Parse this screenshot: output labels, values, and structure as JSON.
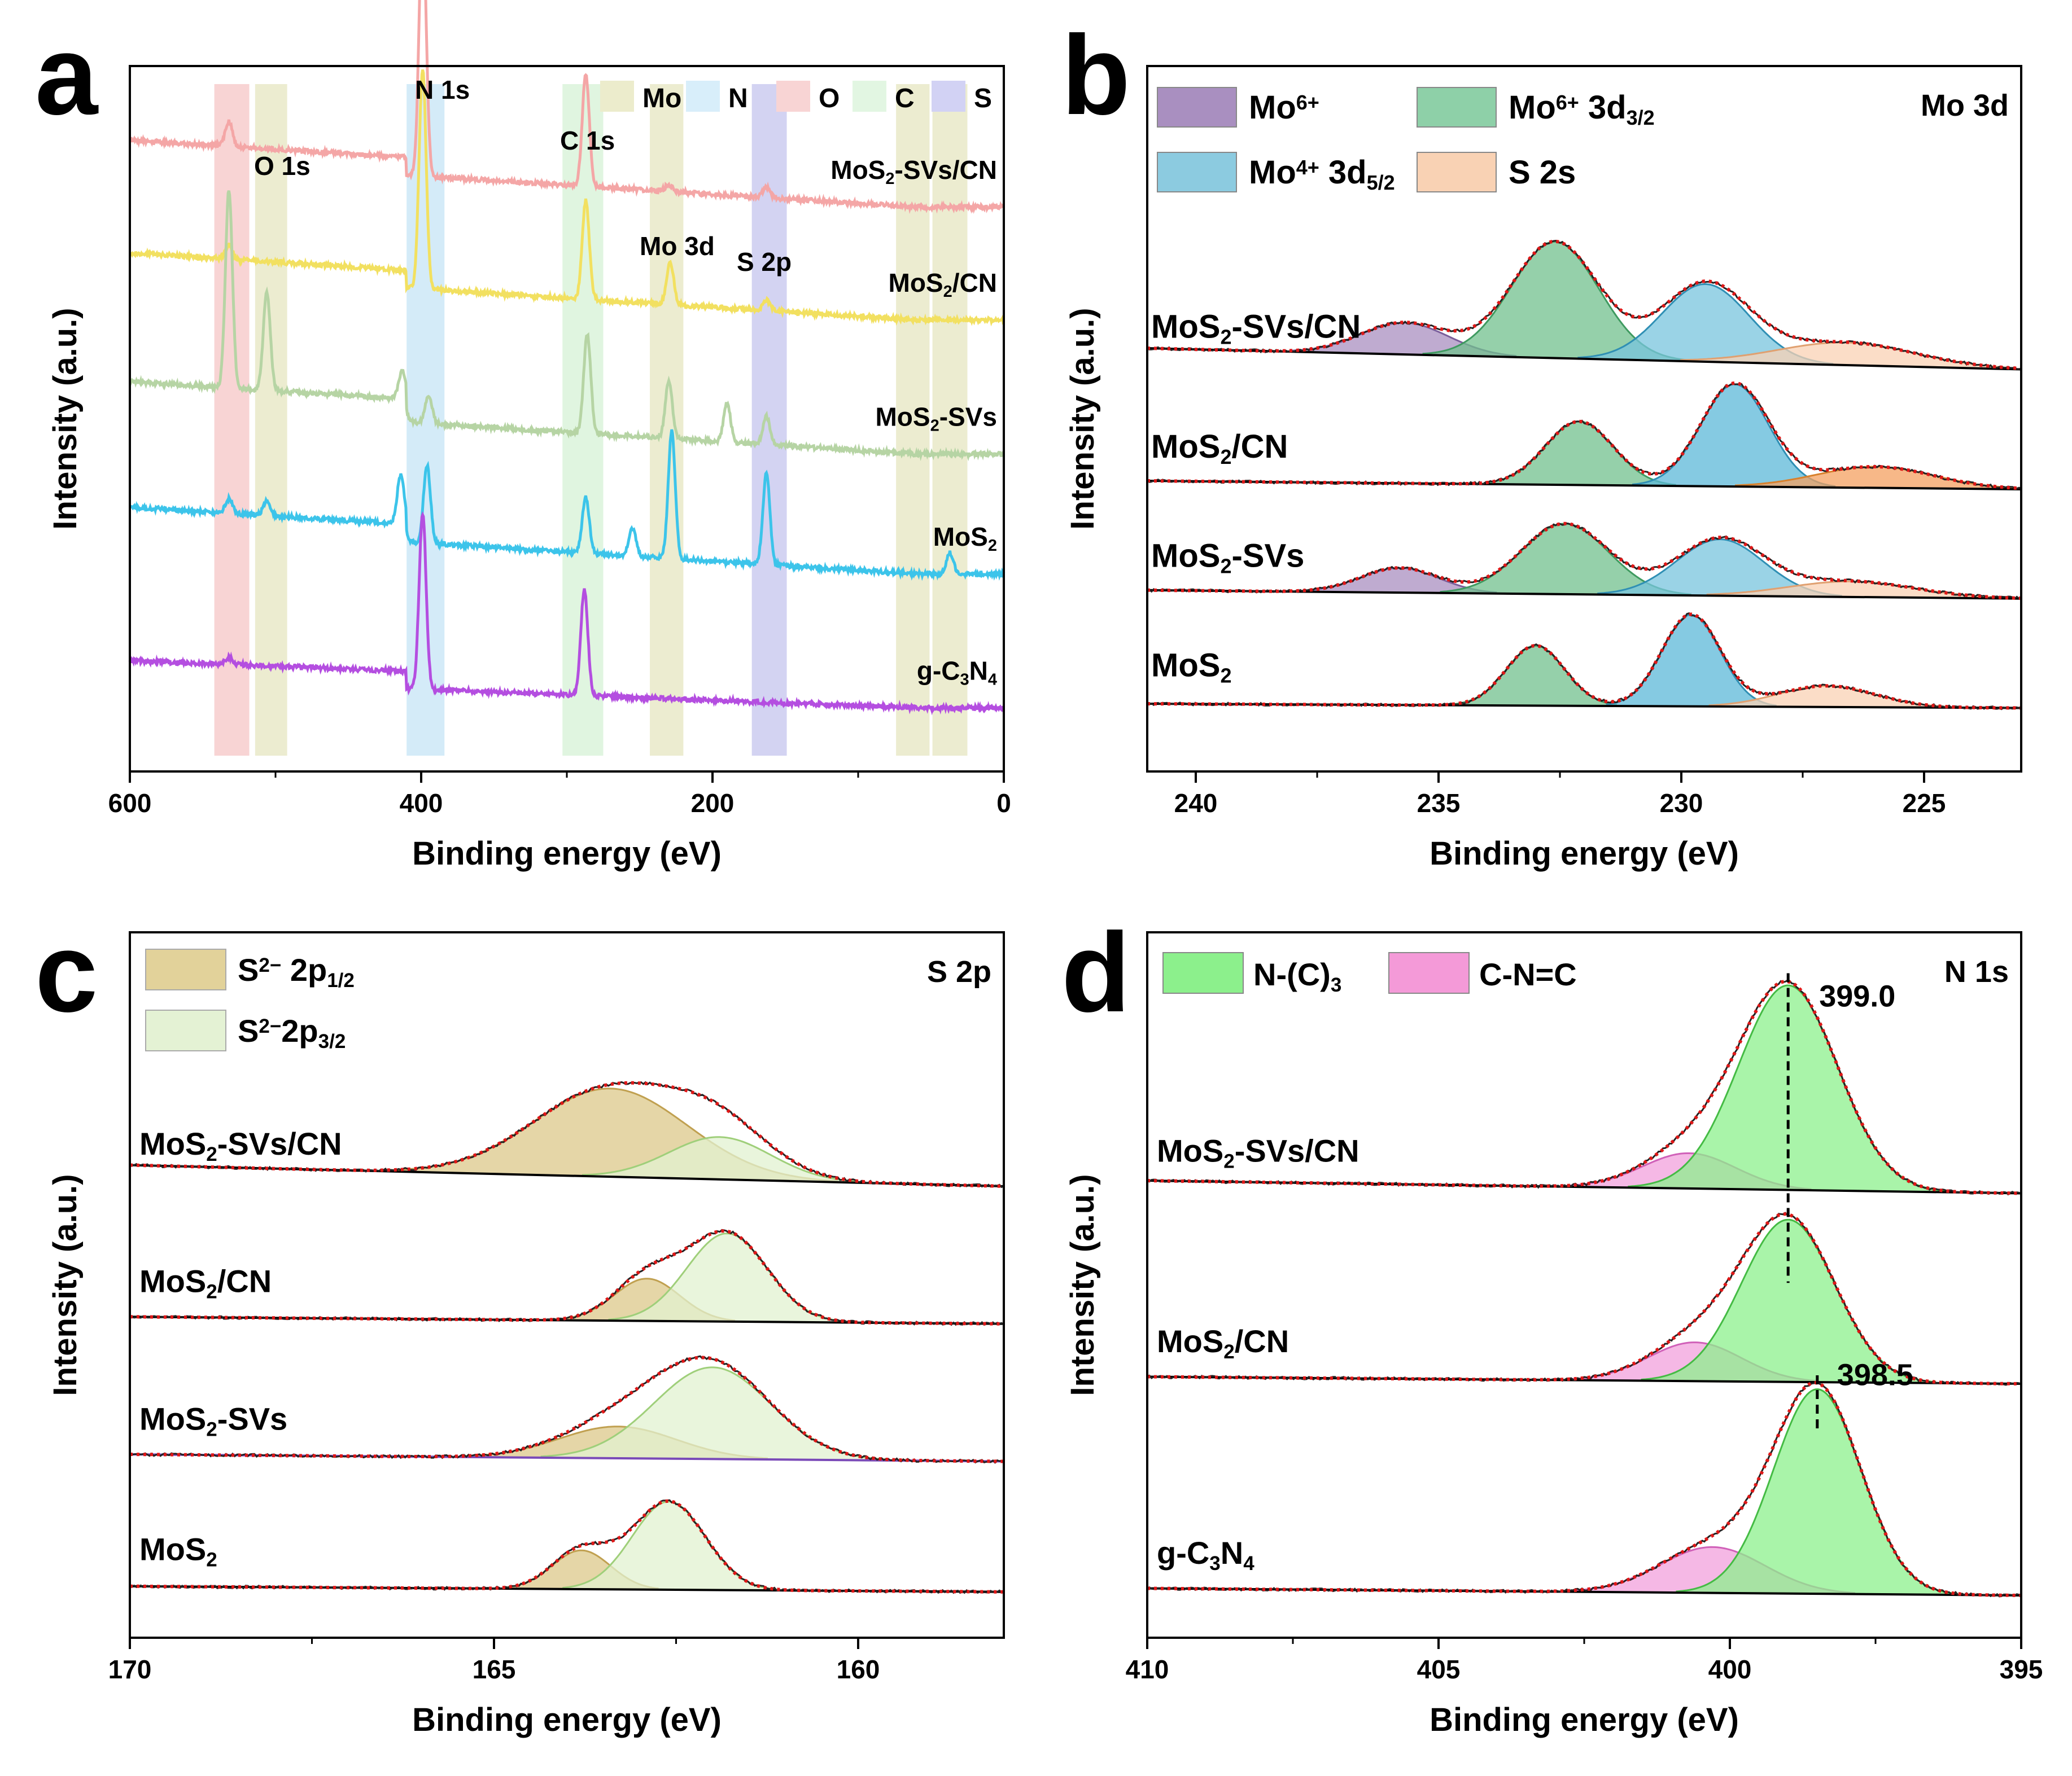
{
  "figure": {
    "panels": [
      "a",
      "b",
      "c",
      "d"
    ]
  },
  "chart_data": [
    {
      "panel": "a",
      "type": "line",
      "subtype": "XPS survey spectra",
      "xlabel": "Binding energy (eV)",
      "ylabel": "Intensity (a.u.)",
      "xlim": [
        600,
        0
      ],
      "x_reversed": true,
      "xticks": [
        "600",
        "400",
        "200",
        "0"
      ],
      "xtick_values": [
        600,
        400,
        200,
        0
      ],
      "region_labels": [
        {
          "label": "O 1s",
          "x": 520
        },
        {
          "label": "N 1s",
          "x": 390
        },
        {
          "label": "C 1s",
          "x": 290
        },
        {
          "label": "Mo 3d",
          "x": 227
        },
        {
          "label": "S 2p",
          "x": 163
        }
      ],
      "highlight_bands": [
        {
          "element": "O",
          "from": 542,
          "to": 518,
          "color": "#f6c6c6"
        },
        {
          "element": "Mo",
          "from": 514,
          "to": 492,
          "color": "#e6e6c0"
        },
        {
          "element": "N",
          "from": 410,
          "to": 384,
          "color": "#c6e4f6"
        },
        {
          "element": "C",
          "from": 303,
          "to": 275,
          "color": "#d6f2d6"
        },
        {
          "element": "Mo",
          "from": 243,
          "to": 220,
          "color": "#e6e6c0"
        },
        {
          "element": "S",
          "from": 173,
          "to": 149,
          "color": "#c4c4ee"
        },
        {
          "element": "Mo",
          "from": 74,
          "to": 51,
          "color": "#e6e6c0"
        },
        {
          "element": "Mo",
          "from": 49,
          "to": 25,
          "color": "#e6e6c0"
        }
      ],
      "legend": [
        {
          "label": "Mo",
          "color": "#ececcc"
        },
        {
          "label": "N",
          "color": "#d8eefa"
        },
        {
          "label": "O",
          "color": "#f8d4d4"
        },
        {
          "label": "C",
          "color": "#e2f6e2"
        },
        {
          "label": "S",
          "color": "#d2d2f4"
        }
      ],
      "series": [
        {
          "name": "MoS2-SVs/CN",
          "label_main": "MoS",
          "label_sub": "2",
          "label_rest": "-SVs/CN",
          "color": "#f4a6a6",
          "offset": 0.8,
          "peaks": [
            {
              "x": 532,
              "h": 0.035
            },
            {
              "x": 399,
              "h": 0.37
            },
            {
              "x": 287,
              "h": 0.16
            },
            {
              "x": 230,
              "h": 0.01
            },
            {
              "x": 163,
              "h": 0.015
            }
          ]
        },
        {
          "name": "MoS2/CN",
          "label_main": "MoS",
          "label_sub": "2",
          "label_rest": "/CN",
          "color": "#f2e060",
          "offset": 0.64,
          "peaks": [
            {
              "x": 532,
              "h": 0.02
            },
            {
              "x": 399,
              "h": 0.31
            },
            {
              "x": 287,
              "h": 0.14
            },
            {
              "x": 229,
              "h": 0.06
            },
            {
              "x": 163,
              "h": 0.015
            }
          ]
        },
        {
          "name": "MoS2-SVs",
          "label_main": "MoS",
          "label_sub": "2",
          "label_rest": "-SVs",
          "color": "#b6d4a4",
          "offset": 0.45,
          "peaks": [
            {
              "x": 532,
              "h": 0.28
            },
            {
              "x": 506,
              "h": 0.14
            },
            {
              "x": 413,
              "h": 0.04
            },
            {
              "x": 395,
              "h": 0.04
            },
            {
              "x": 286,
              "h": 0.14
            },
            {
              "x": 230,
              "h": 0.08
            },
            {
              "x": 190,
              "h": 0.055
            },
            {
              "x": 163,
              "h": 0.04
            }
          ]
        },
        {
          "name": "MoS2",
          "label_main": "MoS",
          "label_sub": "2",
          "label_rest": "",
          "color": "#3cc4ea",
          "offset": 0.28,
          "peaks": [
            {
              "x": 532,
              "h": 0.02
            },
            {
              "x": 506,
              "h": 0.02
            },
            {
              "x": 414,
              "h": 0.07
            },
            {
              "x": 396,
              "h": 0.11
            },
            {
              "x": 287,
              "h": 0.08
            },
            {
              "x": 255,
              "h": 0.04
            },
            {
              "x": 228,
              "h": 0.18
            },
            {
              "x": 163,
              "h": 0.13
            },
            {
              "x": 37,
              "h": 0.03
            }
          ]
        },
        {
          "name": "g-C3N4",
          "label_main": "g-C",
          "label_sub": "3",
          "label_rest": "N",
          "label_sub2": "4",
          "color": "#b44ee0",
          "offset": 0.09,
          "peaks": [
            {
              "x": 532,
              "h": 0.01
            },
            {
              "x": 399,
              "h": 0.25
            },
            {
              "x": 288,
              "h": 0.15
            }
          ]
        }
      ]
    },
    {
      "panel": "b",
      "type": "line",
      "subtype": "XPS high-resolution with fitted peaks",
      "title": "Mo 3d",
      "xlabel": "Binding energy (eV)",
      "ylabel": "Intensity (a.u.)",
      "xlim": [
        241,
        223
      ],
      "x_reversed": true,
      "xticks": [
        "240",
        "235",
        "230",
        "225"
      ],
      "xtick_values": [
        240,
        235,
        230,
        225
      ],
      "legend": [
        {
          "label": "Mo",
          "sup": "6+",
          "sub": "",
          "color": "#a98fc0"
        },
        {
          "label": "Mo",
          "sup": "6+",
          "sub": "3/2",
          "suffix": " 3d",
          "color": "#8ed0a8"
        },
        {
          "label": "Mo",
          "sup": "4+",
          "sub": "5/2",
          "suffix": " 3d",
          "color": "#8ccbe0"
        },
        {
          "label": "S 2s",
          "sup": "",
          "sub": "",
          "color": "#f9d2b4"
        }
      ],
      "series": [
        {
          "name": "MoS2-SVs/CN",
          "label_main": "MoS",
          "label_sub": "2",
          "label_rest": "-SVs/CN",
          "offset": 0.57,
          "bg": [
            0.03,
            0.0
          ],
          "components": [
            {
              "name": "Mo6+",
              "center": 235.7,
              "height": 0.045,
              "width": 0.9,
              "color": "#a98fc0",
              "line": "#7a5e9a"
            },
            {
              "name": "Mo6+ 3d3/2",
              "center": 232.6,
              "height": 0.165,
              "width": 0.9,
              "color": "#72c08e",
              "line": "#3f9a60"
            },
            {
              "name": "Mo4+ 3d5/2",
              "center": 229.5,
              "height": 0.11,
              "width": 0.9,
              "color": "#78c4de",
              "line": "#2f8fb4"
            },
            {
              "name": "S 2s",
              "center": 226.6,
              "height": 0.032,
              "width": 1.4,
              "color": "#f9d2b4",
              "line": "#e0a070"
            }
          ]
        },
        {
          "name": "MoS2/CN",
          "label_main": "MoS",
          "label_sub": "2",
          "label_rest": "/CN",
          "offset": 0.4,
          "bg": [
            0.012,
            0.0
          ],
          "components": [
            {
              "name": "Mo6+ 3d3/2",
              "center": 232.1,
              "height": 0.09,
              "width": 0.7,
              "color": "#72c08e",
              "line": "#3f9a60"
            },
            {
              "name": "Mo4+ 3d5/2",
              "center": 228.9,
              "height": 0.145,
              "width": 0.7,
              "color": "#5cb8d8",
              "line": "#2f8fb4"
            },
            {
              "name": "S 2s",
              "center": 226.0,
              "height": 0.03,
              "width": 1.2,
              "color": "#f4a060",
              "line": "#d8802c"
            }
          ]
        },
        {
          "name": "MoS2-SVs",
          "label_main": "MoS",
          "label_sub": "2",
          "label_rest": "-SVs",
          "offset": 0.245,
          "bg": [
            0.012,
            0.0
          ],
          "components": [
            {
              "name": "Mo6+",
              "center": 235.8,
              "height": 0.035,
              "width": 0.8,
              "color": "#a98fc0",
              "line": "#7a5e9a"
            },
            {
              "name": "Mo6+ 3d3/2",
              "center": 232.4,
              "height": 0.1,
              "width": 0.9,
              "color": "#72c08e",
              "line": "#3f9a60"
            },
            {
              "name": "Mo4+ 3d5/2",
              "center": 229.2,
              "height": 0.08,
              "width": 0.9,
              "color": "#78c4de",
              "line": "#2f8fb4"
            },
            {
              "name": "S 2s",
              "center": 226.5,
              "height": 0.022,
              "width": 1.3,
              "color": "#f9d2b4",
              "line": "#e0a070"
            }
          ]
        },
        {
          "name": "MoS2",
          "label_main": "MoS",
          "label_sub": "2",
          "label_rest": "",
          "offset": 0.09,
          "bg": [
            0.006,
            0.0
          ],
          "components": [
            {
              "name": "Mo6+ 3d3/2",
              "center": 233.0,
              "height": 0.085,
              "width": 0.6,
              "color": "#72c08e",
              "line": "#3f9a60"
            },
            {
              "name": "Mo4+ 3d5/2",
              "center": 229.8,
              "height": 0.13,
              "width": 0.6,
              "color": "#5cb8d8",
              "line": "#2f8fb4"
            },
            {
              "name": "S 2s",
              "center": 227.0,
              "height": 0.03,
              "width": 1.0,
              "color": "#f9d2b4",
              "line": "#e0a070"
            }
          ]
        }
      ]
    },
    {
      "panel": "c",
      "type": "line",
      "subtype": "XPS high-resolution with fitted peaks",
      "title": "S 2p",
      "xlabel": "Binding energy (eV)",
      "ylabel": "Intensity (a.u.)",
      "xlim": [
        170,
        158
      ],
      "x_reversed": true,
      "xticks": [
        "170",
        "165",
        "160"
      ],
      "xtick_values": [
        170,
        165,
        160
      ],
      "legend": [
        {
          "label": "S",
          "sup": "2−",
          "mid": " 2p",
          "sub": "1/2",
          "color": "#e2d29a"
        },
        {
          "label": "S",
          "sup": "2−",
          "mid": "2p",
          "sub": "3/2",
          "color": "#e4f2d4"
        }
      ],
      "series": [
        {
          "name": "MoS2-SVs/CN",
          "label_main": "MoS",
          "label_sub": "2",
          "label_rest": "-SVs/CN",
          "offset": 0.64,
          "bg": [
            0.03,
            0.0
          ],
          "components": [
            {
              "name": "S2- 2p1/2",
              "center": 163.4,
              "height": 0.125,
              "width": 1.05,
              "color": "#dcc88a",
              "line": "#c0a050"
            },
            {
              "name": "S2- 2p3/2",
              "center": 161.9,
              "height": 0.06,
              "width": 0.7,
              "color": "#e2f2d0",
              "line": "#9fcf7a"
            }
          ]
        },
        {
          "name": "MoS2/CN",
          "label_main": "MoS",
          "label_sub": "2",
          "label_rest": "/CN",
          "offset": 0.445,
          "bg": [
            0.01,
            0.0
          ],
          "components": [
            {
              "name": "S2- 2p1/2",
              "center": 162.9,
              "height": 0.06,
              "width": 0.45,
              "color": "#dcc88a",
              "line": "#c0a050"
            },
            {
              "name": "S2- 2p3/2",
              "center": 161.8,
              "height": 0.125,
              "width": 0.55,
              "color": "#e2f2d0",
              "line": "#9fcf7a"
            }
          ]
        },
        {
          "name": "MoS2-SVs",
          "label_main": "MoS",
          "label_sub": "2",
          "label_rest": "-SVs",
          "offset": 0.25,
          "bg": [
            0.01,
            0.0
          ],
          "bg_color": "#7a4ab8",
          "components": [
            {
              "name": "S2- 2p1/2",
              "center": 163.3,
              "height": 0.045,
              "width": 0.8,
              "color": "#dcc88a",
              "line": "#c0a050"
            },
            {
              "name": "S2- 2p3/2",
              "center": 162.0,
              "height": 0.13,
              "width": 0.8,
              "color": "#e2f2d0",
              "line": "#9fcf7a"
            }
          ]
        },
        {
          "name": "MoS2",
          "label_main": "MoS",
          "label_sub": "2",
          "label_rest": "",
          "offset": 0.065,
          "bg": [
            0.008,
            0.0
          ],
          "components": [
            {
              "name": "S2- 2p1/2",
              "center": 163.8,
              "height": 0.055,
              "width": 0.4,
              "color": "#dcc88a",
              "line": "#c0a050"
            },
            {
              "name": "S2- 2p3/2",
              "center": 162.6,
              "height": 0.125,
              "width": 0.5,
              "color": "#e2f2d0",
              "line": "#9fcf7a"
            }
          ]
        }
      ]
    },
    {
      "panel": "d",
      "type": "line",
      "subtype": "XPS high-resolution with fitted peaks",
      "title": "N 1s",
      "xlabel": "Binding energy (eV)",
      "ylabel": "Intensity (a.u.)",
      "xlim": [
        410,
        395
      ],
      "x_reversed": true,
      "xticks": [
        "410",
        "405",
        "400",
        "395"
      ],
      "xtick_values": [
        410,
        405,
        400,
        395
      ],
      "legend": [
        {
          "label": "N-(C)",
          "sub": "3",
          "color": "#8cf08c"
        },
        {
          "label": "C-N=C",
          "sub": "",
          "color": "#f49ad8"
        }
      ],
      "annotations": [
        {
          "text": "399.0",
          "x": 399.0
        },
        {
          "text": "398.5",
          "x": 398.5
        }
      ],
      "series": [
        {
          "name": "MoS2-SVs/CN",
          "label_main": "MoS",
          "label_sub": "2",
          "label_rest": "-SVs/CN",
          "offset": 0.63,
          "bg": [
            0.018,
            0.0
          ],
          "components": [
            {
              "name": "C-N=C",
              "center": 400.7,
              "height": 0.05,
              "width": 0.8,
              "color": "#f2a0dc",
              "line": "#d060b8"
            },
            {
              "name": "N-(C)3",
              "center": 399.0,
              "height": 0.29,
              "width": 0.85,
              "color": "#8cf08c",
              "line": "#44bb44"
            }
          ]
        },
        {
          "name": "MoS2/CN",
          "label_main": "MoS",
          "label_sub": "2",
          "label_rest": "/CN",
          "offset": 0.36,
          "bg": [
            0.01,
            0.0
          ],
          "components": [
            {
              "name": "C-N=C",
              "center": 400.6,
              "height": 0.055,
              "width": 0.8,
              "color": "#f2a0dc",
              "line": "#d060b8"
            },
            {
              "name": "N-(C)3",
              "center": 399.0,
              "height": 0.23,
              "width": 0.8,
              "color": "#8cf08c",
              "line": "#44bb44"
            }
          ]
        },
        {
          "name": "g-C3N4",
          "label_main": "g-C",
          "label_sub": "3",
          "label_rest": "N",
          "label_sub2": "4",
          "offset": 0.06,
          "bg": [
            0.01,
            0.0
          ],
          "components": [
            {
              "name": "C-N=C",
              "center": 400.3,
              "height": 0.065,
              "width": 0.9,
              "color": "#f2a0dc",
              "line": "#d060b8"
            },
            {
              "name": "N-(C)3",
              "center": 398.5,
              "height": 0.29,
              "width": 0.75,
              "color": "#8cf08c",
              "line": "#44bb44"
            }
          ]
        }
      ]
    }
  ]
}
